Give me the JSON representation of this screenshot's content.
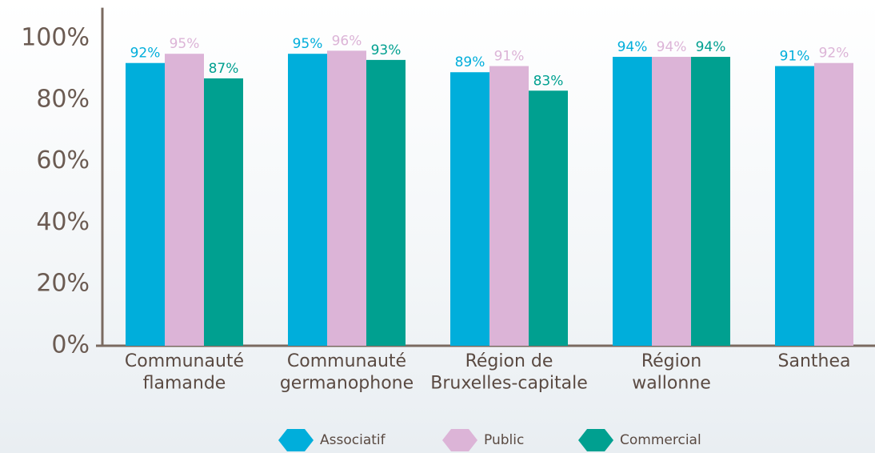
{
  "chart_data": {
    "type": "bar",
    "categories": [
      "Communauté\nflamande",
      "Communauté\ngermanophone",
      "Région de\nBruxelles-capitale",
      "Région\nwallonne",
      "Santhea"
    ],
    "series": [
      {
        "name": "Associatif",
        "color": "#00aedb",
        "values": [
          92,
          95,
          89,
          94,
          91
        ],
        "value_labels": [
          "92%",
          "95%",
          "89%",
          "94%",
          "91%"
        ]
      },
      {
        "name": "Public",
        "color": "#dcb4d7",
        "values": [
          95,
          96,
          91,
          94,
          92
        ],
        "value_labels": [
          "95%",
          "96%",
          "91%",
          "94%",
          "92%"
        ]
      },
      {
        "name": "Commercial",
        "color": "#00a090",
        "values": [
          87,
          93,
          83,
          94,
          null
        ],
        "value_labels": [
          "87%",
          "93%",
          "83%",
          "94%",
          null
        ]
      }
    ],
    "ylim": [
      0,
      110
    ],
    "yticks": [
      {
        "value": 0,
        "label": "0%"
      },
      {
        "value": 20,
        "label": "20%"
      },
      {
        "value": 40,
        "label": "40%"
      },
      {
        "value": 60,
        "label": "60%"
      },
      {
        "value": 80,
        "label": "80%"
      },
      {
        "value": 100,
        "label": "100%"
      }
    ],
    "legend": "bottom"
  }
}
